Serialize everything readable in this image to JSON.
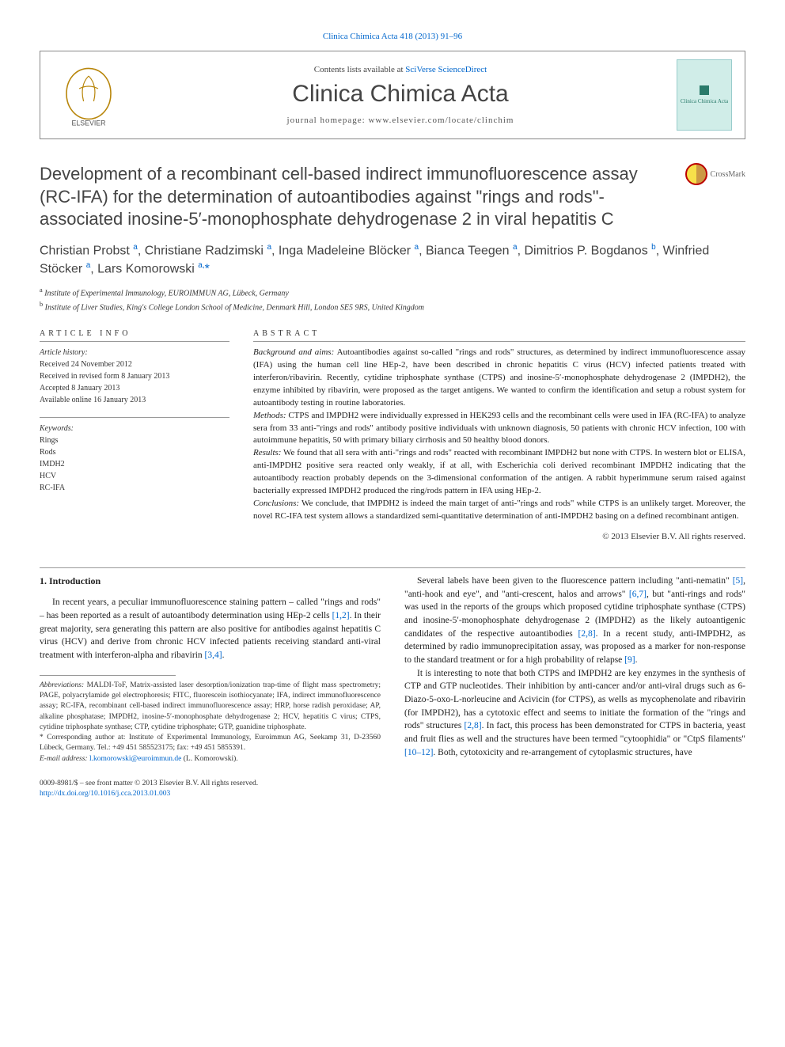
{
  "top_link": "Clinica Chimica Acta 418 (2013) 91–96",
  "header": {
    "contents_prefix": "Contents lists available at ",
    "contents_link": "SciVerse ScienceDirect",
    "journal": "Clinica Chimica Acta",
    "homepage_label": "journal homepage: ",
    "homepage_url": "www.elsevier.com/locate/clinchim",
    "publisher": "ELSEVIER",
    "cover_text": "Clinica Chimica Acta"
  },
  "crossmark_label": "CrossMark",
  "title": "Development of a recombinant cell-based indirect immunofluorescence assay (RC-IFA) for the determination of autoantibodies against \"rings and rods\"-associated inosine-5′-monophosphate dehydrogenase 2 in viral hepatitis C",
  "authors_html": "Christian Probst <sup>a</sup>, Christiane Radzimski <sup>a</sup>, Inga Madeleine Blöcker <sup>a</sup>, Bianca Teegen <sup>a</sup>, Dimitrios P. Bogdanos <sup>b</sup>, Winfried Stöcker <sup>a</sup>, Lars Komorowski <sup>a,</sup><span class=\"star\">*</span>",
  "affiliations": [
    "a  Institute of Experimental Immunology, EUROIMMUN AG, Lübeck, Germany",
    "b  Institute of Liver Studies, King's College London School of Medicine, Denmark Hill, London SE5 9RS, United Kingdom"
  ],
  "article_info_label": "article info",
  "abstract_label": "abstract",
  "history": {
    "heading": "Article history:",
    "received": "Received 24 November 2012",
    "revised": "Received in revised form 8 January 2013",
    "accepted": "Accepted 8 January 2013",
    "online": "Available online 16 January 2013"
  },
  "keywords": {
    "heading": "Keywords:",
    "items": [
      "Rings",
      "Rods",
      "IMDH2",
      "HCV",
      "RC-IFA"
    ]
  },
  "abstract": {
    "p1_label": "Background and aims:",
    "p1": " Autoantibodies against so-called \"rings and rods\" structures, as determined by indirect immunofluorescence assay (IFA) using the human cell line HEp-2, have been described in chronic hepatitis C virus (HCV) infected patients treated with interferon/ribavirin. Recently, cytidine triphosphate synthase (CTPS) and inosine-5′-monophosphate dehydrogenase 2 (IMPDH2), the enzyme inhibited by ribavirin, were proposed as the target antigens. We wanted to confirm the identification and setup a robust system for autoantibody testing in routine laboratories.",
    "p2_label": "Methods:",
    "p2": " CTPS and IMPDH2 were individually expressed in HEK293 cells and the recombinant cells were used in IFA (RC-IFA) to analyze sera from 33 anti-\"rings and rods\" antibody positive individuals with unknown diagnosis, 50 patients with chronic HCV infection, 100 with autoimmune hepatitis, 50 with primary biliary cirrhosis and 50 healthy blood donors.",
    "p3_label": "Results:",
    "p3": " We found that all sera with anti-\"rings and rods\" reacted with recombinant IMPDH2 but none with CTPS. In western blot or ELISA, anti-IMPDH2 positive sera reacted only weakly, if at all, with Escherichia coli derived recombinant IMPDH2 indicating that the autoantibody reaction probably depends on the 3-dimensional conformation of the antigen. A rabbit hyperimmune serum raised against bacterially expressed IMPDH2 produced the ring/rods pattern in IFA using HEp-2.",
    "p4_label": "Conclusions:",
    "p4": " We conclude, that IMPDH2 is indeed the main target of anti-\"rings and rods\" while CTPS is an unlikely target. Moreover, the novel RC-IFA test system allows a standardized semi-quantitative determination of anti-IMPDH2 basing on a defined recombinant antigen."
  },
  "copyright": "© 2013 Elsevier B.V. All rights reserved.",
  "intro_heading": "1. Introduction",
  "intro_left": "In recent years, a peculiar immunofluorescence staining pattern – called \"rings and rods\" – has been reported as a result of autoantibody determination using HEp-2 cells [1,2]. In their great majority, sera generating this pattern are also positive for antibodies against hepatitis C virus (HCV) and derive from chronic HCV infected patients receiving standard anti-viral treatment with interferon-alpha and ribavirin [3,4].",
  "intro_right_1": "Several labels have been given to the fluorescence pattern including \"anti-nematin\" [5], \"anti-hook and eye\", and \"anti-crescent, halos and arrows\" [6,7], but \"anti-rings and rods\" was used in the reports of the groups which proposed cytidine triphosphate synthase (CTPS) and inosine-5′-monophosphate dehydrogenase 2 (IMPDH2) as the likely autoantigenic candidates of the respective autoantibodies [2,8]. In a recent study, anti-IMPDH2, as determined by radio immunoprecipitation assay, was proposed as a marker for non-response to the standard treatment or for a high probability of relapse [9].",
  "intro_right_2": "It is interesting to note that both CTPS and IMPDH2 are key enzymes in the synthesis of CTP and GTP nucleotides. Their inhibition by anti-cancer and/or anti-viral drugs such as 6-Diazo-5-oxo-L-norleucine and Acivicin (for CTPS), as wells as mycophenolate and ribavirin (for IMPDH2), has a cytotoxic effect and seems to initiate the formation of the \"rings and rods\" structures [2,8]. In fact, this process has been demonstrated for CTPS in bacteria, yeast and fruit flies as well and the structures have been termed \"cytoophidia\" or \"CtpS filaments\" [10–12]. Both, cytotoxicity and re-arrangement of cytoplasmic structures, have",
  "abbrev_label": "Abbreviations:",
  "abbrev_text": " MALDI-ToF, Matrix-assisted laser desorption/ionization trap-time of flight mass spectrometry; PAGE, polyacrylamide gel electrophoresis; FITC, fluorescein isothiocyanate; IFA, indirect immunofluorescence assay; RC-IFA, recombinant cell-based indirect immunofluorescence assay; HRP, horse radish peroxidase; AP, alkaline phosphatase; IMPDH2, inosine-5′-monophosphate dehydrogenase 2; HCV, hepatitis C virus; CTPS, cytidine triphosphate synthase; CTP, cytidine triphosphate; GTP, guanidine triphosphate.",
  "corr_label": "* Corresponding author at:",
  "corr_text": " Institute of Experimental Immunology, Euroimmun AG, Seekamp 31, D-23560 Lübeck, Germany. Tel.: +49 451 585523175; fax: +49 451 5855391.",
  "email_label": "E-mail address:",
  "email": "l.komorowski@euroimmun.de",
  "email_suffix": " (L. Komorowski).",
  "issn_line": "0009-8981/$ – see front matter © 2013 Elsevier B.V. All rights reserved.",
  "doi": "http://dx.doi.org/10.1016/j.cca.2013.01.003"
}
